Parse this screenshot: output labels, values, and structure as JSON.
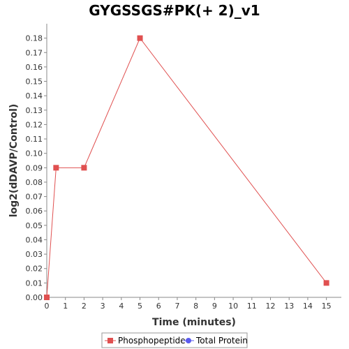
{
  "chart_data": {
    "type": "line",
    "title": "GYGSSGS#PK(+ 2)_v1",
    "xlabel": "Time (minutes)",
    "ylabel": "log2(dDAVP/Control)",
    "xlim": [
      0,
      15.8
    ],
    "ylim": [
      0,
      0.19
    ],
    "x_ticks": [
      0,
      1,
      2,
      3,
      4,
      5,
      6,
      7,
      8,
      9,
      10,
      11,
      12,
      13,
      14,
      15
    ],
    "y_ticks": [
      0.0,
      0.01,
      0.02,
      0.03,
      0.04,
      0.05,
      0.06,
      0.07,
      0.08,
      0.09,
      0.1,
      0.11,
      0.12,
      0.13,
      0.14,
      0.15,
      0.16,
      0.17,
      0.18
    ],
    "grid": false,
    "legend_position": "bottom",
    "series": [
      {
        "name": "Phosphopeptide",
        "color": "#e05050",
        "marker": "square",
        "x": [
          0,
          0.5,
          2,
          5,
          15
        ],
        "y": [
          0.0,
          0.09,
          0.09,
          0.18,
          0.01
        ]
      },
      {
        "name": "Total Protein",
        "color": "#5b5bef",
        "marker": "circle",
        "x": [],
        "y": []
      }
    ]
  }
}
